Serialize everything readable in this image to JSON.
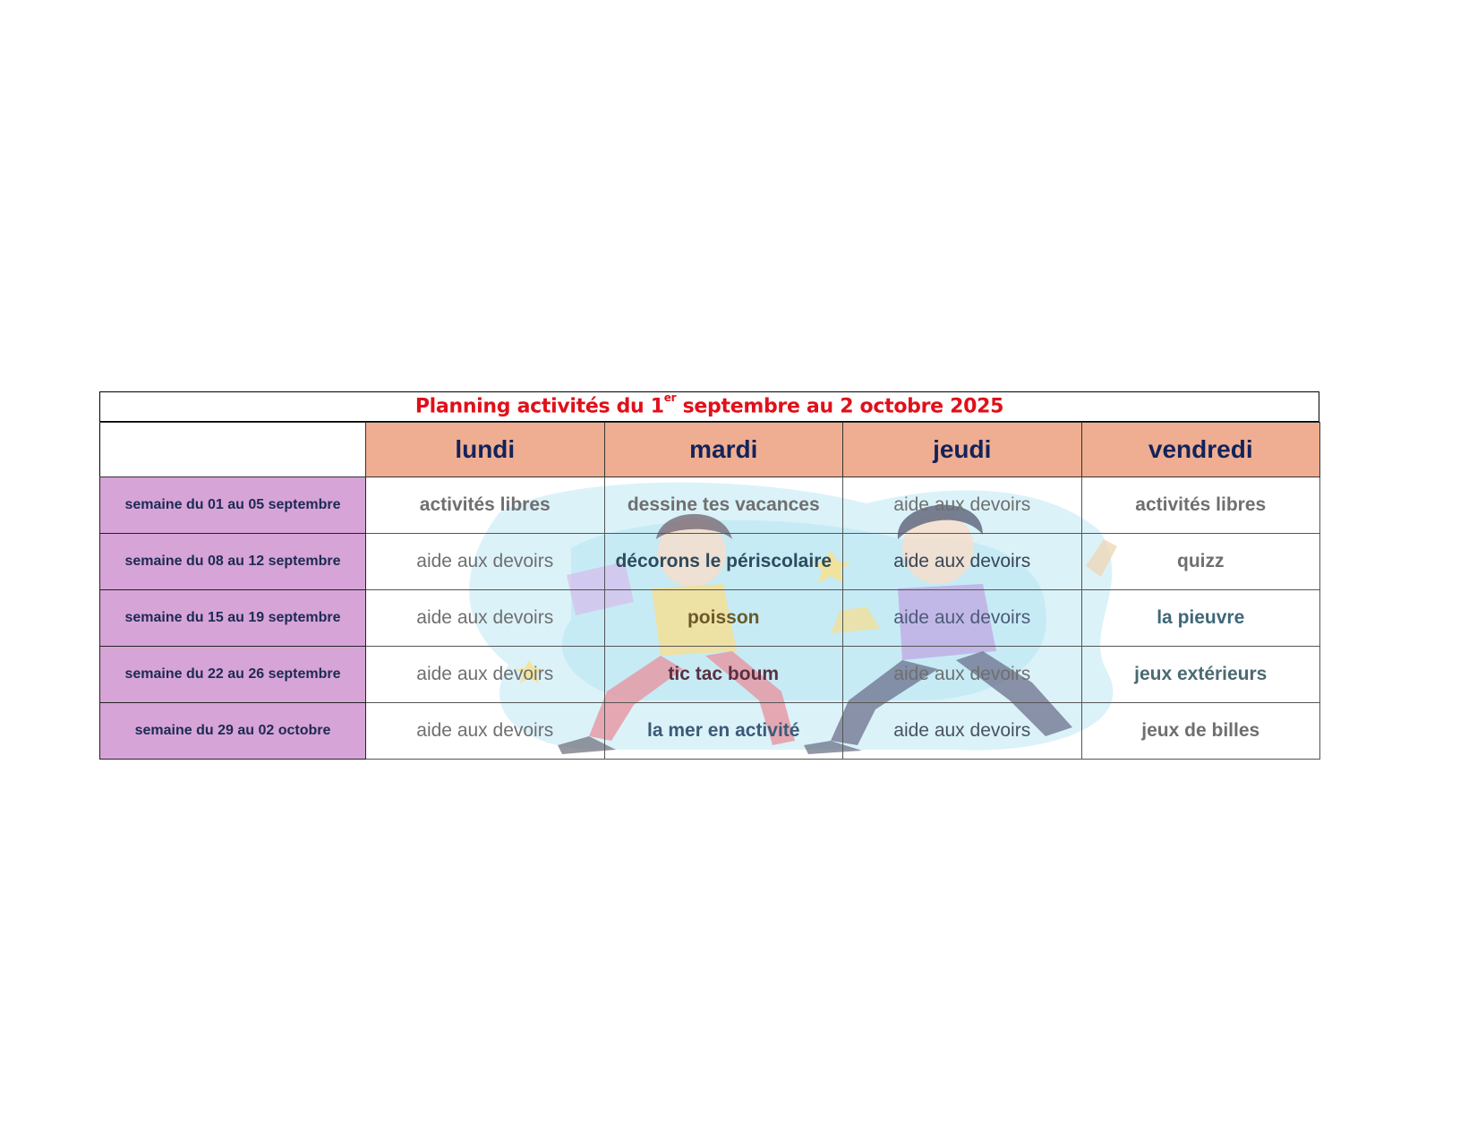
{
  "planning": {
    "title_main": "Planning activités du 1",
    "title_sup": "er",
    "title_rest": " septembre au 2 octobre 2025",
    "days": [
      "lundi",
      "mardi",
      "jeudi",
      "vendredi"
    ],
    "weeks": [
      {
        "label": "semaine du 01 au 05 septembre",
        "activities": [
          "activités libres",
          "dessine tes vacances",
          "aide aux devoirs",
          "activités libres"
        ]
      },
      {
        "label": "semaine du 08 au 12 septembre",
        "activities": [
          "aide aux devoirs",
          "décorons le périscolaire",
          "aide aux devoirs",
          "quizz"
        ]
      },
      {
        "label": "semaine du 15 au 19 septembre",
        "activities": [
          "aide aux devoirs",
          "poisson",
          "aide aux devoirs",
          "la pieuvre"
        ]
      },
      {
        "label": "semaine du 22 au 26 septembre",
        "activities": [
          "aide aux devoirs",
          "tic tac boum",
          "aide aux devoirs",
          "jeux extérieurs"
        ]
      },
      {
        "label": "semaine du 29 au 02 octobre",
        "activities": [
          "aide aux devoirs",
          "la mer en activité",
          "aide aux devoirs",
          "jeux de billes"
        ]
      }
    ]
  },
  "colors": {
    "title": "#e0101a",
    "day_header_bg": "#efae91",
    "day_header_text": "#13235a",
    "week_bg": "#d7a4d7",
    "week_text": "#1c2a54",
    "activity_text": "#6f6f6f"
  },
  "illustration": {
    "subject": "two-children-running-illustration"
  }
}
